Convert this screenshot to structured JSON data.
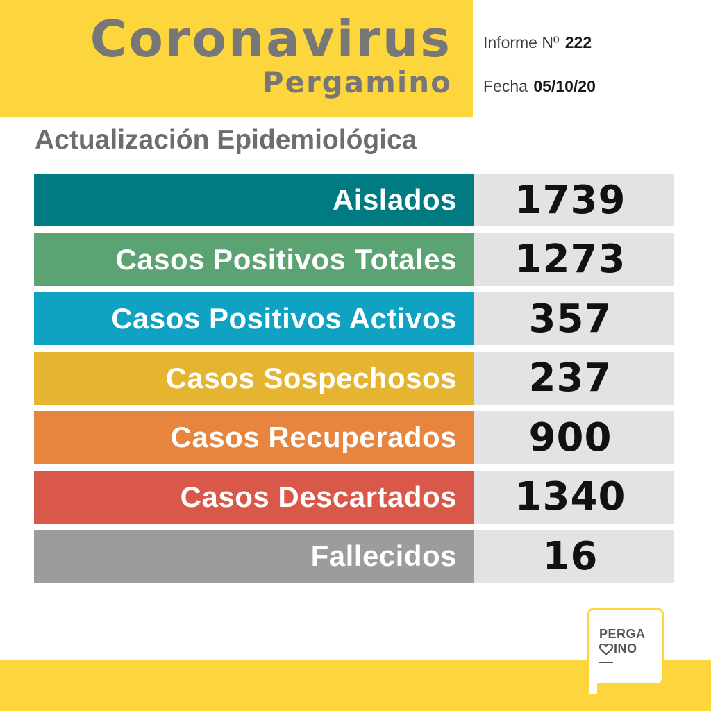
{
  "header": {
    "title": "Coronavirus",
    "subtitle": "Pergamino",
    "informe_label": "Informe Nº",
    "informe_number": "222",
    "fecha_label": "Fecha",
    "fecha_value": "05/10/20"
  },
  "section_heading": "Actualización Epidemiológica",
  "stats": [
    {
      "label": "Aislados",
      "value": "1739",
      "color": "#007b82"
    },
    {
      "label": "Casos Positivos Totales",
      "value": "1273",
      "color": "#5ca374"
    },
    {
      "label": "Casos Positivos Activos",
      "value": "357",
      "color": "#0fa2c3"
    },
    {
      "label": "Casos Sospechosos",
      "value": "237",
      "color": "#e5b531"
    },
    {
      "label": "Casos Recuperados",
      "value": "900",
      "color": "#e7843d"
    },
    {
      "label": "Casos Descartados",
      "value": "1340",
      "color": "#d9584a"
    },
    {
      "label": "Fallecidos",
      "value": "16",
      "color": "#9c9c9c"
    }
  ],
  "logo": {
    "line1": "PERGA",
    "line2": "INO",
    "icon": "heart-icon"
  },
  "colors": {
    "brand_yellow": "#fdd53c",
    "title_gray": "#777777",
    "value_bg": "#e3e3e5"
  }
}
